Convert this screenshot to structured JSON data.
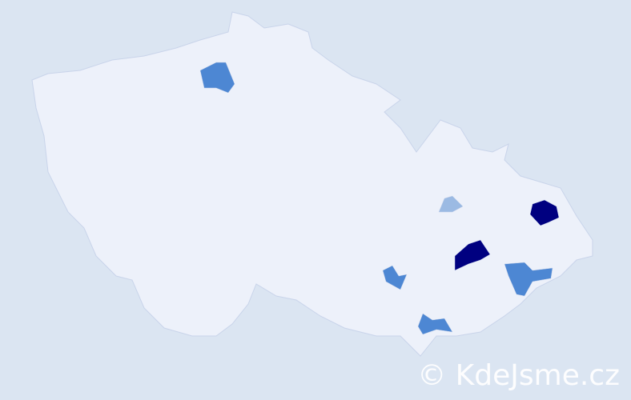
{
  "map": {
    "colors": {
      "background": "#dbe5f2",
      "region_default": "#edf1fa",
      "border": "#c9d4ea",
      "high": "#000080",
      "medium": "#4d87d3",
      "low": "#9bbae3"
    },
    "highlighted_regions": [
      {
        "level": "high"
      },
      {
        "level": "high"
      },
      {
        "level": "medium"
      },
      {
        "level": "medium"
      },
      {
        "level": "medium"
      },
      {
        "level": "medium"
      },
      {
        "level": "low"
      }
    ]
  },
  "watermark": "© KdeJsme.cz"
}
